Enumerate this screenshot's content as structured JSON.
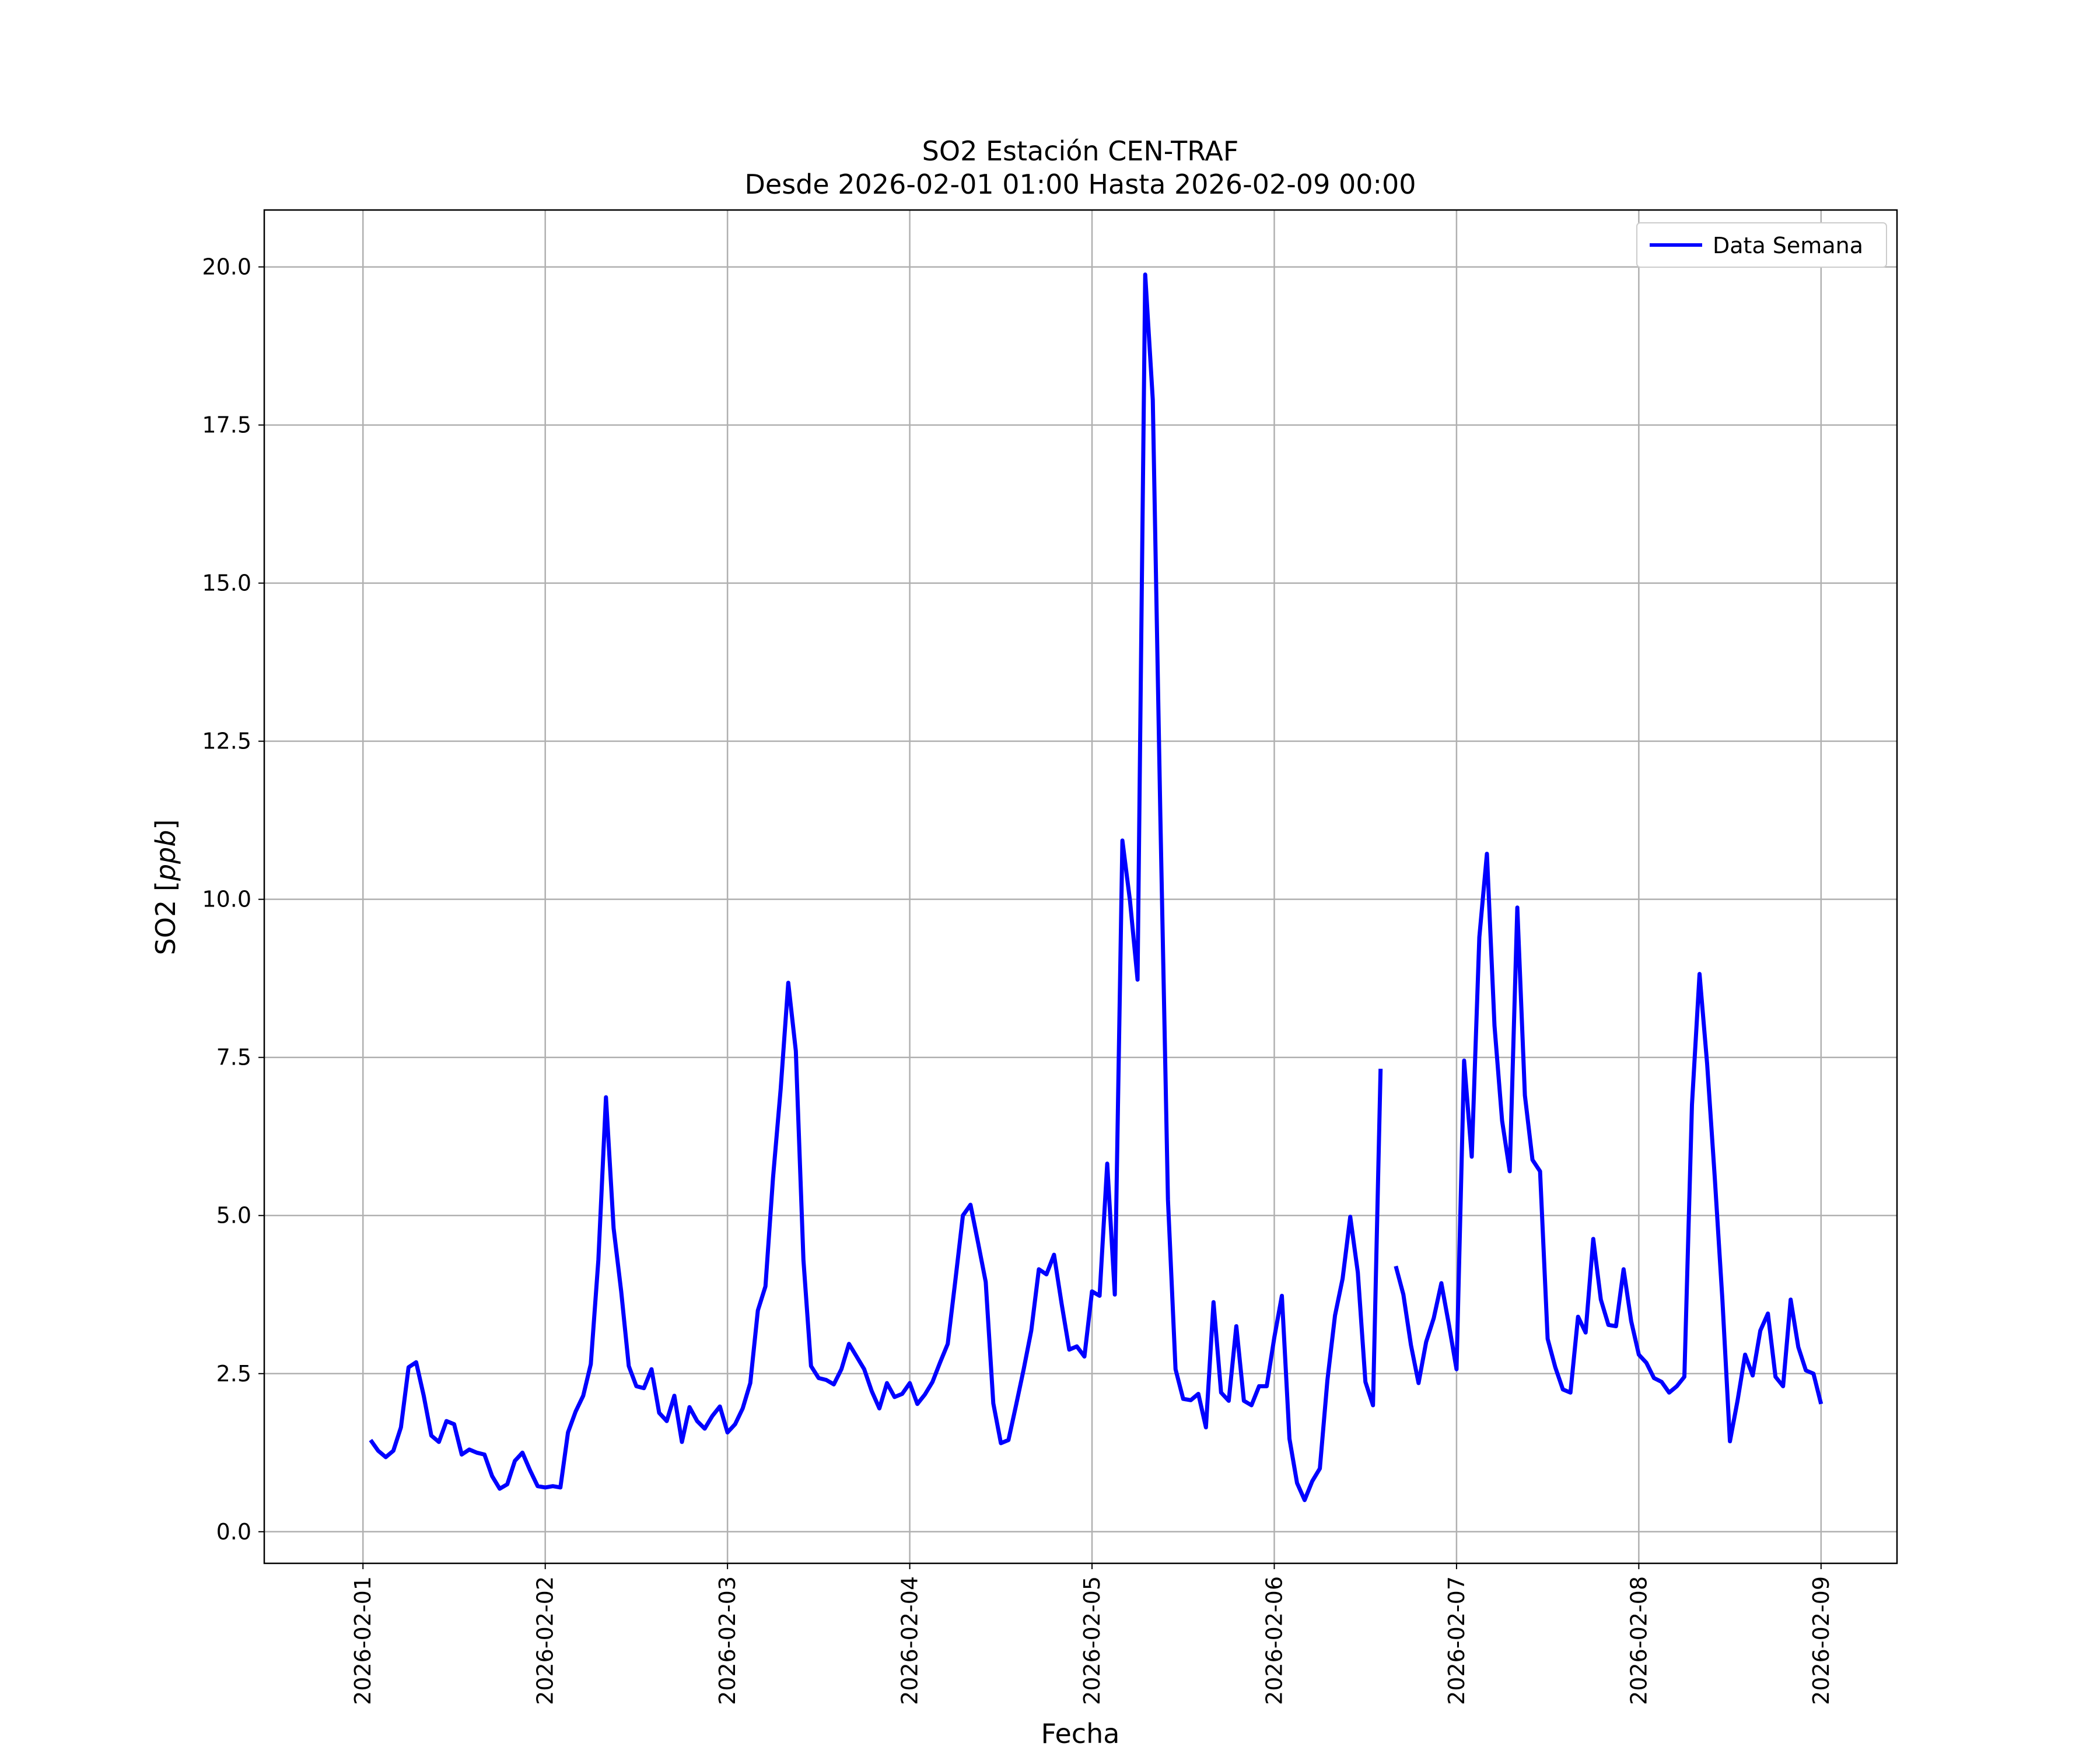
{
  "chart_data": {
    "type": "line",
    "title": "SO2 Estación CEN-TRAF",
    "subtitle": "Desde 2026-02-01 01:00 Hasta 2026-02-09 00:00",
    "xlabel": "Fecha",
    "ylabel": "SO2 [",
    "ylabel_unit": "ppb",
    "ylabel_close": "]",
    "xlim": [
      "2026-01-31 11:00",
      "2026-02-09 10:00"
    ],
    "ylim": [
      -0.5,
      20.9
    ],
    "x_ticks": [
      "2026-02-01",
      "2026-02-02",
      "2026-02-03",
      "2026-02-04",
      "2026-02-05",
      "2026-02-06",
      "2026-02-07",
      "2026-02-08",
      "2026-02-09"
    ],
    "y_ticks": [
      0.0,
      2.5,
      5.0,
      7.5,
      10.0,
      12.5,
      15.0,
      17.5,
      20.0
    ],
    "y_tick_labels": [
      "0.0",
      "2.5",
      "5.0",
      "7.5",
      "10.0",
      "12.5",
      "15.0",
      "17.5",
      "20.0"
    ],
    "grid": true,
    "legend_position": "top-right",
    "series": [
      {
        "name": "Data Semana",
        "color": "#0000ff",
        "x_start": "2026-02-01 01:00",
        "x_interval": "1 hour",
        "values": [
          1.45,
          1.28,
          1.18,
          1.28,
          1.65,
          2.6,
          2.68,
          2.15,
          1.52,
          1.42,
          1.75,
          1.7,
          1.22,
          1.3,
          1.25,
          1.22,
          0.88,
          0.68,
          0.75,
          1.12,
          1.25,
          0.97,
          0.72,
          0.7,
          0.72,
          0.7,
          1.57,
          1.9,
          2.15,
          2.65,
          4.3,
          6.87,
          4.8,
          3.8,
          2.62,
          2.3,
          2.27,
          2.57,
          1.88,
          1.75,
          2.15,
          1.42,
          1.97,
          1.75,
          1.63,
          1.83,
          1.98,
          1.57,
          1.7,
          1.95,
          2.35,
          3.5,
          3.88,
          5.6,
          7.0,
          8.68,
          7.6,
          4.3,
          2.62,
          2.43,
          2.4,
          2.33,
          2.57,
          2.97,
          2.77,
          2.57,
          2.22,
          1.95,
          2.35,
          2.13,
          2.18,
          2.35,
          2.02,
          2.17,
          2.37,
          2.68,
          2.97,
          3.97,
          5.0,
          5.17,
          4.57,
          3.95,
          2.03,
          1.4,
          1.45,
          2.0,
          2.57,
          3.18,
          4.15,
          4.07,
          4.38,
          3.6,
          2.88,
          2.93,
          2.77,
          3.8,
          3.73,
          5.82,
          3.75,
          10.93,
          9.98,
          8.73,
          19.88,
          17.9,
          11.3,
          5.25,
          2.57,
          2.1,
          2.08,
          2.18,
          1.65,
          3.63,
          2.2,
          2.07,
          3.25,
          2.07,
          2.0,
          2.3,
          2.3,
          3.07,
          3.73,
          1.47,
          0.77,
          0.5,
          0.8,
          1.0,
          2.4,
          3.42,
          4.0,
          4.98,
          4.1,
          2.37,
          2.0,
          7.32,
          null,
          4.2,
          3.75,
          2.95,
          2.35,
          3.0,
          3.38,
          3.93,
          3.27,
          2.57,
          7.45,
          5.93,
          9.4,
          10.72,
          8.0,
          6.5,
          5.7,
          9.87,
          6.9,
          5.88,
          5.7,
          3.05,
          2.6,
          2.25,
          2.2,
          3.4,
          3.15,
          4.63,
          3.67,
          3.27,
          3.25,
          4.15,
          3.33,
          2.8,
          2.67,
          2.43,
          2.37,
          2.2,
          2.3,
          2.45,
          6.75,
          8.82,
          7.4,
          5.6,
          3.68,
          1.43,
          2.07,
          2.8,
          2.47,
          3.18,
          3.45,
          2.45,
          2.3,
          3.67,
          2.92,
          2.55,
          2.5,
          2.02
        ]
      }
    ]
  }
}
